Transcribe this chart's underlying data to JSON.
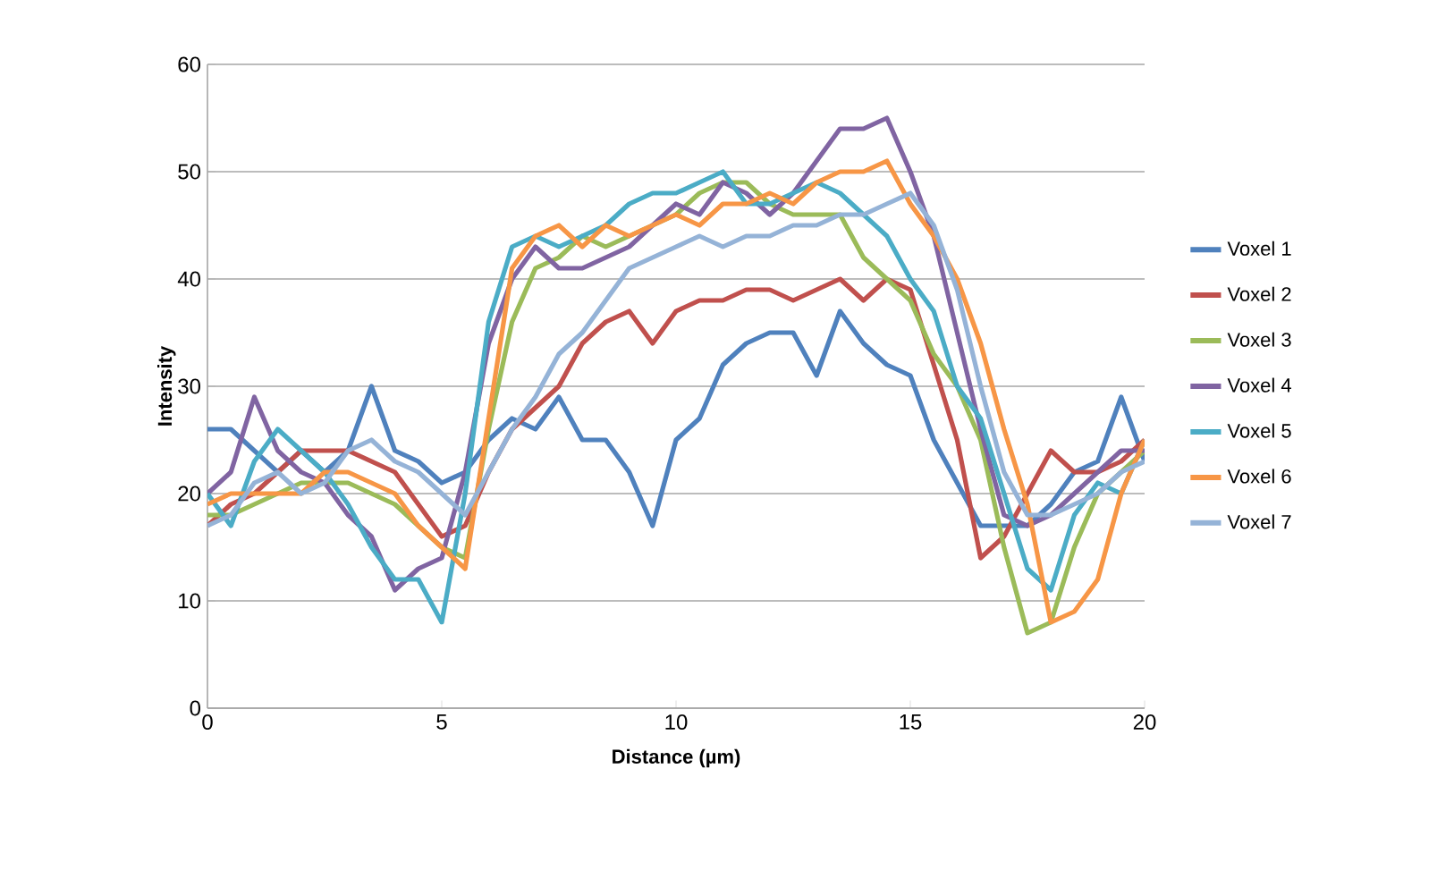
{
  "chart_data": {
    "type": "line",
    "xlabel": "Distance (µm)",
    "ylabel": "Intensity",
    "x": [
      0,
      0.5,
      1,
      1.5,
      2,
      2.5,
      3,
      3.5,
      4,
      4.5,
      5,
      5.5,
      6,
      6.5,
      7,
      7.5,
      8,
      8.5,
      9,
      9.5,
      10,
      10.5,
      11,
      11.5,
      12,
      12.5,
      13,
      13.5,
      14,
      14.5,
      15,
      15.5,
      16,
      16.5,
      17,
      17.5,
      18,
      18.5,
      19,
      19.5,
      20
    ],
    "series": [
      {
        "name": "Voxel 1",
        "color": "#4f81bd",
        "values": [
          26,
          26,
          24,
          22,
          24,
          22,
          24,
          30,
          24,
          23,
          21,
          22,
          25,
          27,
          26,
          29,
          25,
          25,
          22,
          17,
          25,
          27,
          32,
          34,
          35,
          35,
          31,
          37,
          34,
          32,
          31,
          25,
          21,
          17,
          17,
          17,
          19,
          22,
          23,
          29,
          23
        ]
      },
      {
        "name": "Voxel 2",
        "color": "#c0504d",
        "values": [
          17,
          19,
          20,
          22,
          24,
          24,
          24,
          23,
          22,
          19,
          16,
          17,
          22,
          26,
          28,
          30,
          34,
          36,
          37,
          34,
          37,
          38,
          38,
          39,
          39,
          38,
          39,
          40,
          38,
          40,
          39,
          32,
          25,
          14,
          16,
          20,
          24,
          22,
          22,
          23,
          25
        ]
      },
      {
        "name": "Voxel 3",
        "color": "#9bbb59",
        "values": [
          18,
          18,
          19,
          20,
          21,
          21,
          21,
          20,
          19,
          17,
          15,
          14,
          26,
          36,
          41,
          42,
          44,
          43,
          44,
          45,
          46,
          48,
          49,
          49,
          47,
          46,
          46,
          46,
          42,
          40,
          38,
          33,
          30,
          25,
          15,
          7,
          8,
          15,
          20,
          22,
          24
        ]
      },
      {
        "name": "Voxel 4",
        "color": "#8064a2",
        "values": [
          20,
          22,
          29,
          24,
          22,
          21,
          18,
          16,
          11,
          13,
          14,
          22,
          34,
          40,
          43,
          41,
          41,
          42,
          43,
          45,
          47,
          46,
          49,
          48,
          46,
          48,
          51,
          54,
          54,
          55,
          50,
          44,
          35,
          26,
          18,
          17,
          18,
          20,
          22,
          24,
          24
        ]
      },
      {
        "name": "Voxel 5",
        "color": "#4bacc6",
        "values": [
          20,
          17,
          23,
          26,
          24,
          22,
          19,
          15,
          12,
          12,
          8,
          20,
          36,
          43,
          44,
          43,
          44,
          45,
          47,
          48,
          48,
          49,
          50,
          47,
          47,
          48,
          49,
          48,
          46,
          44,
          40,
          37,
          30,
          27,
          20,
          13,
          11,
          18,
          21,
          20,
          25
        ]
      },
      {
        "name": "Voxel 6",
        "color": "#f79646",
        "values": [
          19,
          20,
          20,
          20,
          20,
          22,
          22,
          21,
          20,
          17,
          15,
          13,
          27,
          41,
          44,
          45,
          43,
          45,
          44,
          45,
          46,
          45,
          47,
          47,
          48,
          47,
          49,
          50,
          50,
          51,
          47,
          44,
          40,
          34,
          26,
          19,
          8,
          9,
          12,
          20,
          25
        ]
      },
      {
        "name": "Voxel 7",
        "color": "#95b3d7",
        "values": [
          17,
          18,
          21,
          22,
          20,
          21,
          24,
          25,
          23,
          22,
          20,
          18,
          22,
          26,
          29,
          33,
          35,
          38,
          41,
          42,
          43,
          44,
          43,
          44,
          44,
          45,
          45,
          46,
          46,
          47,
          48,
          45,
          39,
          30,
          22,
          18,
          18,
          19,
          20,
          22,
          23
        ]
      }
    ],
    "xlim": [
      0,
      20
    ],
    "xticks": [
      0,
      5,
      10,
      15,
      20
    ],
    "ylim": [
      0,
      60
    ],
    "yticks": [
      0,
      10,
      20,
      30,
      40,
      50,
      60
    ],
    "grid": "y",
    "legend": "right",
    "marker": "none",
    "line_style": "solid"
  }
}
